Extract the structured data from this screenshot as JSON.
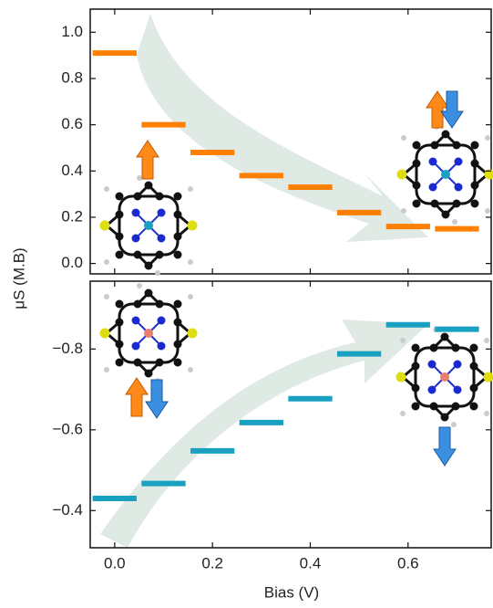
{
  "chart_data": [
    {
      "type": "step-segments",
      "ylabel": "μS (M.B)",
      "x": [
        0,
        0.1,
        0.2,
        0.3,
        0.4,
        0.5,
        0.6,
        0.7
      ],
      "series": [
        {
          "color": "#ff8000",
          "values": [
            0.91,
            0.6,
            0.48,
            0.38,
            0.33,
            0.22,
            0.16,
            0.15
          ]
        }
      ],
      "xlim": [
        -0.05,
        0.77
      ],
      "ylim": [
        -0.045,
        1.1
      ],
      "xticks": [
        0,
        0.2,
        0.4,
        0.6
      ],
      "yticks": [
        {
          "value": 0,
          "label": "0.0"
        },
        0.2,
        0.4,
        0.6,
        0.8,
        {
          "value": 1,
          "label": "1.0"
        }
      ]
    },
    {
      "type": "step-segments",
      "xlabel": "Bias (V)",
      "x": [
        0,
        0.1,
        0.2,
        0.3,
        0.4,
        0.5,
        0.6,
        0.7
      ],
      "series": [
        {
          "color": "#1aa0c0",
          "values": [
            -0.43,
            -0.467,
            -0.548,
            -0.618,
            -0.677,
            -0.788,
            -0.86,
            -0.849
          ]
        }
      ],
      "xlim": [
        -0.05,
        0.77
      ],
      "ylim": [
        -0.308,
        -0.968
      ],
      "xticks": [
        {
          "value": 0,
          "label": "0.0"
        },
        0.2,
        0.4,
        0.6
      ],
      "yticks": [
        {
          "value": -0.4,
          "label": "−0.4"
        },
        {
          "value": -0.6,
          "label": "−0.6"
        },
        {
          "value": -0.8,
          "label": "−0.8"
        }
      ]
    }
  ]
}
